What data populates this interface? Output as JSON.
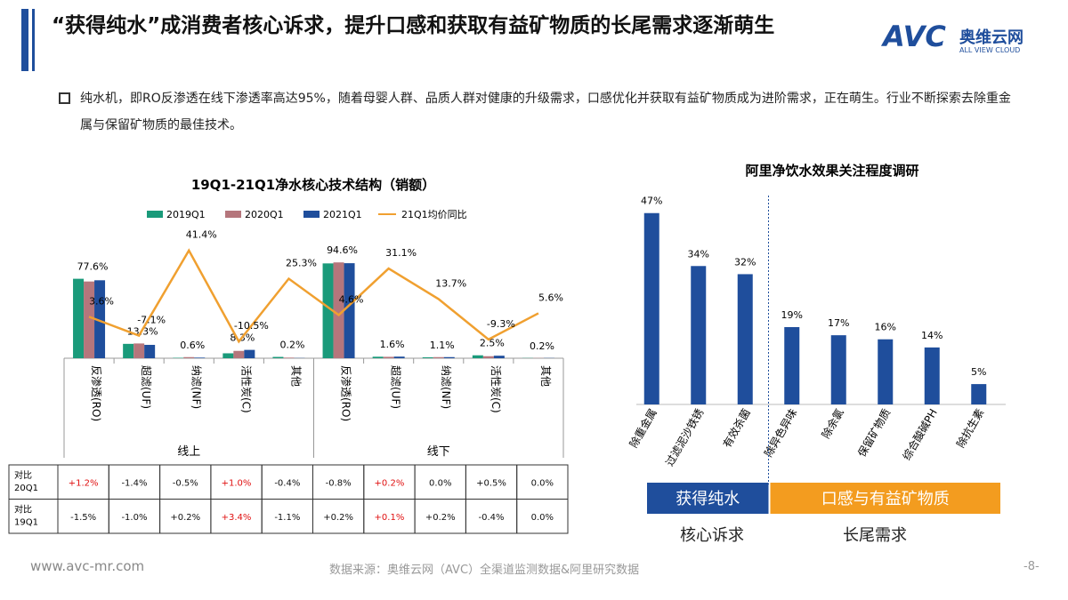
{
  "header": {
    "title": "“获得纯水”成消费者核心诉求，提升口感和获取有益矿物质的长尾需求逐渐萌生"
  },
  "logo": {
    "brand": "AVC",
    "name": "奥维云网",
    "tagline": "ALL VIEW CLOUD"
  },
  "bullet": "纯水机，即RO反渗透在线下渗透率高达95%，随着母婴人群、品质人群对健康的升级需求，口感优化并获取有益矿物质成为进阶需求，正在萌生。行业不断探索去除重金属与保留矿物质的最佳技术。",
  "chart_data": [
    {
      "type": "bar-line",
      "title": "19Q1-21Q1净水核心技术结构（销额）",
      "categories": [
        "反渗透(RO)",
        "超滤(UF)",
        "纳滤(NF)",
        "活性炭(C)",
        "其他",
        "反渗透(RO)",
        "超滤(UF)",
        "纳滤(NF)",
        "活性炭(C)",
        "其他"
      ],
      "groups": [
        "线上",
        "线下"
      ],
      "ylim": [
        0,
        100
      ],
      "y2lim": [
        -20,
        60
      ],
      "series": [
        {
          "name": "2019Q1",
          "color": "#1a9a7a",
          "values": [
            79.1,
            14.3,
            0.4,
            4.9,
            1.3,
            94.4,
            1.5,
            0.9,
            2.9,
            0.2
          ]
        },
        {
          "name": "2020Q1",
          "color": "#b5767c",
          "values": [
            76.4,
            14.7,
            1.1,
            7.3,
            0.6,
            95.4,
            1.4,
            1.1,
            2.0,
            0.2
          ]
        },
        {
          "name": "2021Q1",
          "color": "#1f4e9c",
          "values": [
            77.6,
            13.3,
            0.6,
            8.3,
            0.2,
            94.6,
            1.6,
            1.1,
            2.5,
            0.2
          ],
          "value_labels": [
            "77.6%",
            "13.3%",
            "0.6%",
            "8.3%",
            "0.2%",
            "94.6%",
            "1.6%",
            "1.1%",
            "2.5%",
            "0.2%"
          ]
        },
        {
          "name": "21Q1均价同比",
          "color": "#f0a030",
          "axis": "y2",
          "values": [
            3.6,
            -7.1,
            41.4,
            -10.5,
            25.3,
            4.6,
            31.1,
            13.7,
            -9.3,
            5.6
          ],
          "value_labels": [
            "3.6%",
            "-7.1%",
            "41.4%",
            "-10.5%",
            "25.3%",
            "4.6%",
            "31.1%",
            "13.7%",
            "-9.3%",
            "5.6%"
          ]
        }
      ]
    },
    {
      "type": "bar",
      "title": "阿里净饮水效果关注程度调研",
      "categories": [
        "除重金属",
        "过滤泥沙铁锈",
        "有效杀菌",
        "除异色异味",
        "除余氯",
        "保留矿物质",
        "综合酸碱PH",
        "除抗生素"
      ],
      "values": [
        47,
        34,
        32,
        19,
        17,
        16,
        14,
        5
      ],
      "value_labels": [
        "47%",
        "34%",
        "32%",
        "19%",
        "17%",
        "16%",
        "14%",
        "5%"
      ],
      "color": "#1f4e9c",
      "ylim": [
        0,
        50
      ],
      "segments": [
        {
          "label": "获得纯水",
          "note": "核心诉求",
          "color": "#1f4e9c",
          "count": 3
        },
        {
          "label": "口感与有益矿物质",
          "note": "长尾需求",
          "color": "#f39c1f",
          "count": 5
        }
      ]
    }
  ],
  "table": {
    "rows": [
      {
        "label": [
          "对比",
          "20Q1"
        ],
        "cells": [
          "+1.2%",
          "-1.4%",
          "-0.5%",
          "+1.0%",
          "-0.4%",
          "-0.8%",
          "+0.2%",
          "0.0%",
          "+0.5%",
          "0.0%"
        ],
        "highlight": [
          0,
          3,
          6
        ]
      },
      {
        "label": [
          "对比",
          "19Q1"
        ],
        "cells": [
          "-1.5%",
          "-1.0%",
          "+0.2%",
          "+3.4%",
          "-1.1%",
          "+0.2%",
          "+0.1%",
          "+0.2%",
          "-0.4%",
          "0.0%"
        ],
        "highlight": [
          3,
          6
        ]
      }
    ],
    "highlight_color": "#e01010"
  },
  "footer": {
    "site": "www.avc-mr.com",
    "source": "数据来源：奥维云网（AVC）全渠道监测数据&阿里研究数据",
    "page": "-8-"
  }
}
